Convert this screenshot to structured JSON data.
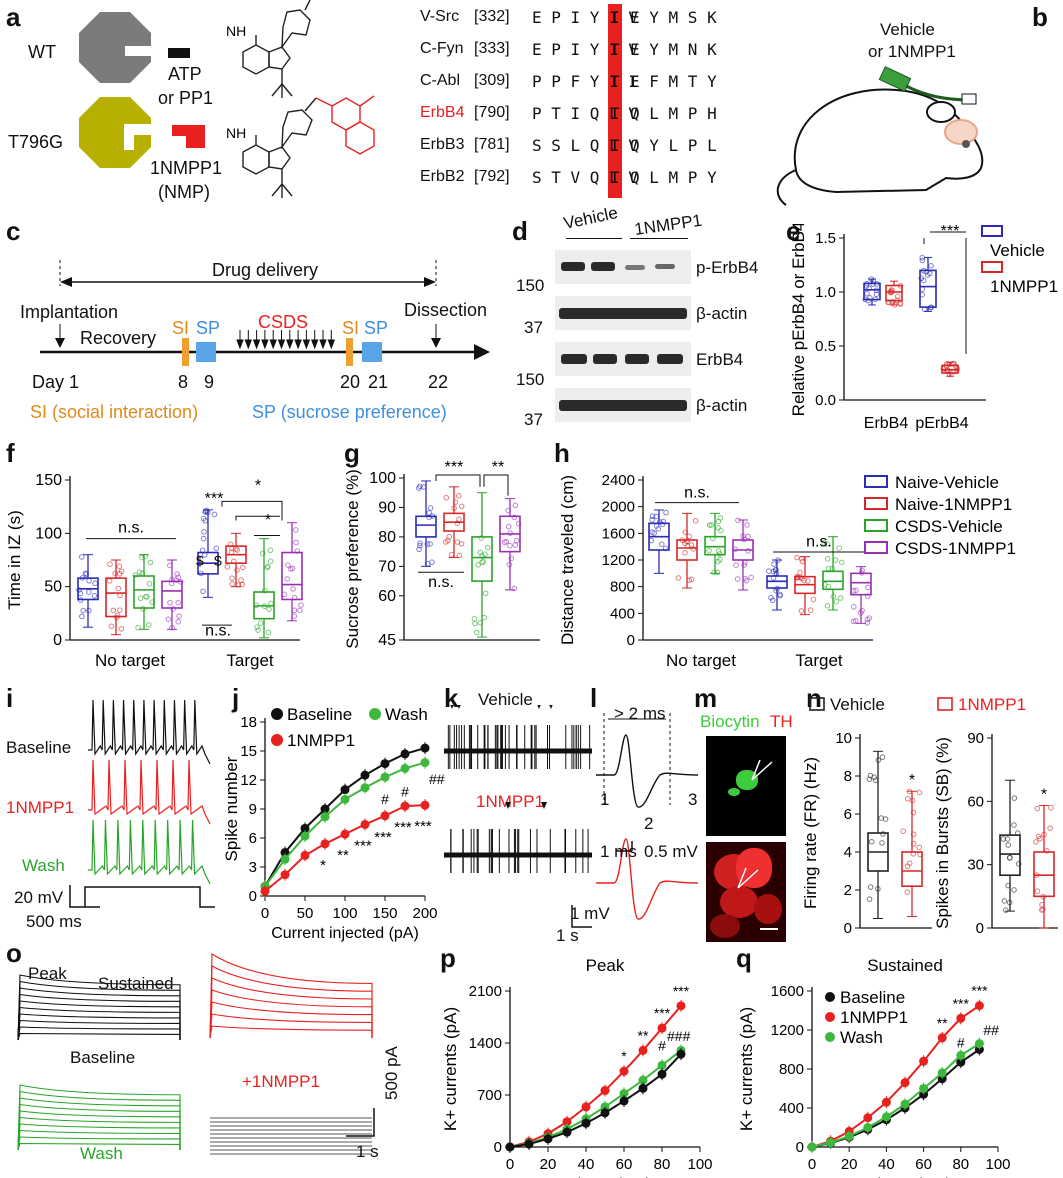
{
  "panel_letters": [
    "a",
    "b",
    "c",
    "d",
    "e",
    "f",
    "g",
    "h",
    "i",
    "j",
    "k",
    "l",
    "m",
    "n",
    "o",
    "p",
    "q"
  ],
  "a": {
    "wt_label": "WT",
    "mut_label": "T796G",
    "atp_label": "ATP",
    "pp1_label": "or PP1",
    "nmp_label": "1NMPP1",
    "nmp_abbr": "(NMP)",
    "nh2": "NH",
    "colors": {
      "wt": "#7b7b7b",
      "mut": "#b7b000",
      "inhibitor": "#e8211e"
    },
    "sequences": [
      {
        "name": "V-Src",
        "pos": "[332]",
        "pre": "E P I Y I V",
        "gate": "I",
        "post": "E Y M S K"
      },
      {
        "name": "C-Fyn",
        "pos": "[333]",
        "pre": "E P I Y I V",
        "gate": "T",
        "post": "E Y M N K"
      },
      {
        "name": "C-Abl",
        "pos": "[309]",
        "pre": "P P F Y I I",
        "gate": "T",
        "post": "E F M T Y"
      },
      {
        "name": "ErbB4",
        "pos": "[790]",
        "pre": "P T I Q L V",
        "gate": "T",
        "post": "Q L M P H"
      },
      {
        "name": "ErbB3",
        "pos": "[781]",
        "pre": "S S L Q L V",
        "gate": "T",
        "post": "Q Y L P L"
      },
      {
        "name": "ErbB2",
        "pos": "[792]",
        "pre": "S T V Q L V",
        "gate": "T",
        "post": "Q L M P Y"
      }
    ]
  },
  "b": {
    "line1": "Vehicle",
    "line2": "or 1NMPP1"
  },
  "c": {
    "drug_delivery": "Drug delivery",
    "implantation": "Implantation",
    "recovery": "Recovery",
    "si": "SI",
    "sp": "SP",
    "csds": "CSDS",
    "dissection": "Dissection",
    "days": [
      "Day 1",
      "8",
      "9",
      "20",
      "21",
      "22"
    ],
    "legend_si": "SI (social interaction)",
    "legend_sp": "SP (sucrose preference)"
  },
  "d": {
    "vehicle": "Vehicle",
    "nmp": "1NMPP1",
    "rows": [
      "p-ErbB4",
      "β-actin",
      "ErbB4",
      "β-actin"
    ],
    "mw": [
      "150",
      "37",
      "150",
      "37"
    ]
  },
  "e": {
    "ylabel": "Relative pErbB4 or ErbB4",
    "sig": "***",
    "legend": [
      "Vehicle",
      "1NMPP1"
    ]
  },
  "f": {
    "sig_top": "*",
    "sig_mid": "*",
    "sig_main": "***",
    "dollar": "$",
    "ns": "n.s."
  },
  "g": {
    "sig1": "***",
    "sig2": "**",
    "ns": "n.s."
  },
  "h": {
    "ns": "n.s.",
    "legend": [
      "Naive-Vehicle",
      "Naive-1NMPP1",
      "CSDS-Vehicle",
      "CSDS-1NMPP1"
    ]
  },
  "i": {
    "labels": [
      "Baseline",
      "1NMPP1",
      "Wash"
    ],
    "scale_mv": "20 mV",
    "scale_ms": "500 ms"
  },
  "j": {
    "sig_nmp_vs_base": [
      "*",
      "**",
      "***",
      "***",
      "***",
      "***"
    ],
    "sig_wash": [
      "#",
      "#",
      "###"
    ]
  },
  "k": {
    "vehicle": "Vehicle",
    "nmp": "1NMPP1",
    "scale_mv": "1 mV",
    "scale_s": "1 s"
  },
  "l": {
    "width": "> 2 ms",
    "points": [
      "1",
      "2",
      "3"
    ],
    "scale_ms": "1 ms",
    "scale_mv": "0.5 mV"
  },
  "m": {
    "biocytin": "Biocytin",
    "th": "TH"
  },
  "n": {
    "legend": [
      "Vehicle",
      "1NMPP1"
    ],
    "sig": "*"
  },
  "o": {
    "peak": "Peak",
    "sustained": "Sustained",
    "baseline": "Baseline",
    "wash": "Wash",
    "nmp": "+1NMPP1",
    "scale_pa": "500 pA",
    "scale_s": "1 s"
  },
  "p": {
    "sig_nmp": [
      "*",
      "**",
      "***",
      "***"
    ],
    "sig_wash": [
      "#",
      "###"
    ]
  },
  "q": {
    "sig_nmp": [
      "**",
      "***",
      "***"
    ],
    "sig_wash": [
      "#",
      "##"
    ]
  },
  "chart_data": [
    {
      "id": "e",
      "type": "box",
      "categories": [
        "ErbB4",
        "pErbB4"
      ],
      "series": [
        {
          "name": "Vehicle",
          "color": "#2b2bb5",
          "values": [
            [
              0.88,
              0.93,
              1.02,
              1.08,
              1.12
            ],
            [
              0.82,
              0.86,
              1.05,
              1.2,
              1.32
            ]
          ]
        },
        {
          "name": "1NMPP1",
          "color": "#d62828",
          "values": [
            [
              0.88,
              0.92,
              1.0,
              1.06,
              1.1
            ],
            [
              0.22,
              0.25,
              0.28,
              0.32,
              0.35
            ]
          ]
        }
      ],
      "yticks": [
        "0.0",
        "0.5",
        "1.0",
        "1.5"
      ],
      "ylim": [
        0,
        1.5
      ]
    },
    {
      "id": "f",
      "type": "box",
      "ylabel": "Time in IZ (s)",
      "categories": [
        "No target",
        "Target"
      ],
      "series": [
        {
          "name": "Naive-Vehicle",
          "color": "#2b2bb5",
          "values": [
            [
              12,
              38,
              48,
              58,
              80
            ],
            [
              40,
              62,
              72,
              82,
              122
            ]
          ]
        },
        {
          "name": "Naive-1NMPP1",
          "color": "#d62828",
          "values": [
            [
              5,
              22,
              44,
              58,
              75
            ],
            [
              50,
              72,
              80,
              88,
              100
            ]
          ]
        },
        {
          "name": "CSDS-Vehicle",
          "color": "#2aa52a",
          "values": [
            [
              10,
              30,
              47,
              60,
              80
            ],
            [
              2,
              20,
              32,
              45,
              95
            ]
          ]
        },
        {
          "name": "CSDS-1NMPP1",
          "color": "#9a2fb5",
          "values": [
            [
              10,
              30,
              46,
              55,
              75
            ],
            [
              18,
              38,
              52,
              82,
              110
            ]
          ]
        }
      ],
      "yticks": [
        "0",
        "50",
        "100",
        "150"
      ],
      "ylim": [
        0,
        150
      ]
    },
    {
      "id": "g",
      "type": "box",
      "ylabel": "Sucrose preference (%)",
      "categories": [
        ""
      ],
      "series": [
        {
          "name": "Naive-Vehicle",
          "color": "#2b2bb5",
          "values": [
            [
              70,
              80,
              84,
              87,
              99
            ]
          ]
        },
        {
          "name": "Naive-1NMPP1",
          "color": "#d62828",
          "values": [
            [
              73,
              82,
              85,
              88,
              97
            ]
          ]
        },
        {
          "name": "CSDS-Vehicle",
          "color": "#2aa52a",
          "values": [
            [
              46,
              65,
              73,
              80,
              95
            ]
          ]
        },
        {
          "name": "CSDS-1NMPP1",
          "color": "#9a2fb5",
          "values": [
            [
              62,
              75,
              81,
              87,
              93
            ]
          ]
        }
      ],
      "yticks": [
        "45",
        "60",
        "70",
        "80",
        "90",
        "100"
      ],
      "ylim": [
        45,
        100
      ]
    },
    {
      "id": "h",
      "type": "box",
      "ylabel": "Distance traveled (cm)",
      "categories": [
        "No target",
        "Target"
      ],
      "series": [
        {
          "name": "Naive-Vehicle",
          "color": "#2b2bb5",
          "values": [
            [
              1000,
              1350,
              1550,
              1750,
              1950
            ],
            [
              450,
              780,
              880,
              960,
              1200
            ]
          ]
        },
        {
          "name": "Naive-1NMPP1",
          "color": "#d62828",
          "values": [
            [
              780,
              1200,
              1380,
              1500,
              1900
            ],
            [
              380,
              700,
              830,
              950,
              1250
            ]
          ]
        },
        {
          "name": "CSDS-Vehicle",
          "color": "#2aa52a",
          "values": [
            [
              1000,
              1280,
              1400,
              1550,
              1900
            ],
            [
              450,
              760,
              880,
              1030,
              1550
            ]
          ]
        },
        {
          "name": "CSDS-1NMPP1",
          "color": "#9a2fb5",
          "values": [
            [
              750,
              1200,
              1350,
              1500,
              1800
            ],
            [
              250,
              680,
              860,
              1000,
              1100
            ]
          ]
        }
      ],
      "yticks": [
        "0",
        "400",
        "800",
        "1200",
        "1600",
        "2000",
        "2400"
      ],
      "ylim": [
        0,
        2400
      ]
    },
    {
      "id": "j",
      "type": "line",
      "xlabel": "Current injected (pA)",
      "ylabel": "Spike number",
      "x": [
        0,
        25,
        50,
        75,
        100,
        125,
        150,
        175,
        200
      ],
      "series": [
        {
          "name": "Baseline",
          "color": "#111111",
          "values": [
            1,
            4.5,
            7,
            9,
            11,
            12.5,
            13.7,
            14.7,
            15.3
          ]
        },
        {
          "name": "Wash",
          "color": "#3cb83c",
          "values": [
            1,
            3.8,
            6.2,
            8.2,
            10,
            11.2,
            12.3,
            13.2,
            13.8
          ]
        },
        {
          "name": "1NMPP1",
          "color": "#e8211e",
          "values": [
            0.5,
            2.2,
            4.2,
            5.4,
            6.4,
            7.4,
            8.3,
            9.3,
            9.4
          ]
        }
      ],
      "xticks": [
        "0",
        "50",
        "100",
        "150",
        "200"
      ],
      "yticks": [
        "0",
        "3",
        "6",
        "9",
        "12",
        "15",
        "18"
      ],
      "xlim": [
        0,
        200
      ],
      "ylim": [
        0,
        18
      ]
    },
    {
      "id": "n",
      "type": "box",
      "subplots": [
        {
          "ylabel": "Firing rate (FR) (Hz)",
          "yticks": [
            "0",
            "2",
            "4",
            "6",
            "8",
            "10"
          ],
          "ylim": [
            0,
            10
          ],
          "series": [
            {
              "name": "Vehicle",
              "color": "#222222",
              "values": [
                0.5,
                3,
                4,
                5,
                9.3
              ]
            },
            {
              "name": "1NMPP1",
              "color": "#d62828",
              "values": [
                0.6,
                2.2,
                3,
                4,
                7.2
              ]
            }
          ]
        },
        {
          "ylabel": "Spikes in Bursts (SB) (%)",
          "yticks": [
            "0",
            "30",
            "60",
            "90"
          ],
          "ylim": [
            0,
            90
          ],
          "series": [
            {
              "name": "Vehicle",
              "color": "#222222",
              "values": [
                8,
                25,
                35,
                44,
                70
              ]
            },
            {
              "name": "1NMPP1",
              "color": "#d62828",
              "values": [
                0,
                15,
                25,
                36,
                58
              ]
            }
          ]
        }
      ]
    },
    {
      "id": "p",
      "type": "line",
      "title": "Peak",
      "xlabel": "Voltage (mV)",
      "ylabel": "K+ currents (pA)",
      "x": [
        0,
        10,
        20,
        30,
        40,
        50,
        60,
        70,
        80,
        90
      ],
      "series": [
        {
          "name": "1NMPP1",
          "color": "#e8211e",
          "values": [
            0,
            70,
            180,
            340,
            540,
            760,
            1020,
            1300,
            1600,
            1900
          ]
        },
        {
          "name": "Wash",
          "color": "#3cb83c",
          "values": [
            0,
            50,
            130,
            240,
            380,
            540,
            720,
            900,
            1100,
            1300
          ]
        },
        {
          "name": "Baseline",
          "color": "#111111",
          "values": [
            0,
            40,
            110,
            200,
            320,
            460,
            620,
            790,
            980,
            1250
          ]
        }
      ],
      "xticks": [
        "0",
        "20",
        "40",
        "60",
        "80",
        "100"
      ],
      "yticks": [
        "0",
        "700",
        "1400",
        "2100"
      ],
      "xlim": [
        0,
        100
      ],
      "ylim": [
        0,
        2100
      ]
    },
    {
      "id": "q",
      "type": "line",
      "title": "Sustained",
      "xlabel": "Voltage (mV)",
      "ylabel": "K+ currents (pA)",
      "x": [
        0,
        10,
        20,
        30,
        40,
        50,
        60,
        70,
        80,
        90
      ],
      "series": [
        {
          "name": "Baseline",
          "color": "#111111",
          "values": [
            0,
            40,
            100,
            180,
            280,
            400,
            540,
            700,
            870,
            1000
          ]
        },
        {
          "name": "1NMPP1",
          "color": "#e8211e",
          "values": [
            0,
            60,
            160,
            300,
            460,
            660,
            880,
            1120,
            1320,
            1450
          ]
        },
        {
          "name": "Wash",
          "color": "#3cb83c",
          "values": [
            0,
            45,
            110,
            200,
            310,
            440,
            600,
            760,
            940,
            1060
          ]
        }
      ],
      "xticks": [
        "0",
        "20",
        "40",
        "60",
        "80",
        "100"
      ],
      "yticks": [
        "0",
        "400",
        "800",
        "1200",
        "1600"
      ],
      "xlim": [
        0,
        100
      ],
      "ylim": [
        0,
        1600
      ]
    }
  ]
}
